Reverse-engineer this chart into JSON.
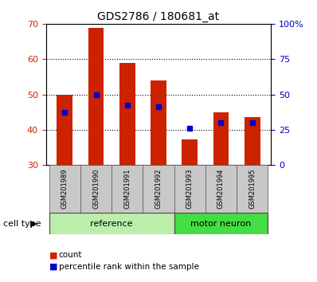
{
  "title": "GDS2786 / 180681_at",
  "samples": [
    "GSM201989",
    "GSM201990",
    "GSM201991",
    "GSM201992",
    "GSM201993",
    "GSM201994",
    "GSM201995"
  ],
  "red_bars": [
    50.0,
    69.0,
    59.0,
    54.0,
    37.2,
    45.0,
    43.5
  ],
  "blue_dots_y": [
    45.0,
    50.0,
    47.0,
    46.5,
    40.5,
    42.0,
    42.0
  ],
  "bar_bottom": 30.0,
  "ylim_left": [
    30,
    70
  ],
  "ylim_right": [
    0,
    100
  ],
  "yticks_left": [
    30,
    40,
    50,
    60,
    70
  ],
  "yticks_right": [
    0,
    25,
    50,
    75,
    100
  ],
  "ytick_labels_right": [
    "0",
    "25",
    "50",
    "75",
    "100%"
  ],
  "grid_lines": [
    40,
    50,
    60
  ],
  "ref_indices": [
    0,
    1,
    2,
    3
  ],
  "mn_indices": [
    4,
    5,
    6
  ],
  "ref_label": "reference",
  "mn_label": "motor neuron",
  "ref_color": "#BBEEAA",
  "mn_color": "#44DD44",
  "cell_type_label": "cell type",
  "bar_color": "#CC2200",
  "dot_color": "#0000CC",
  "tick_color_left": "#CC2200",
  "tick_color_right": "#0000CC",
  "bg_xtick": "#C8C8C8",
  "legend_count_color": "#CC2200",
  "legend_dot_color": "#0000CC",
  "bar_width": 0.5
}
